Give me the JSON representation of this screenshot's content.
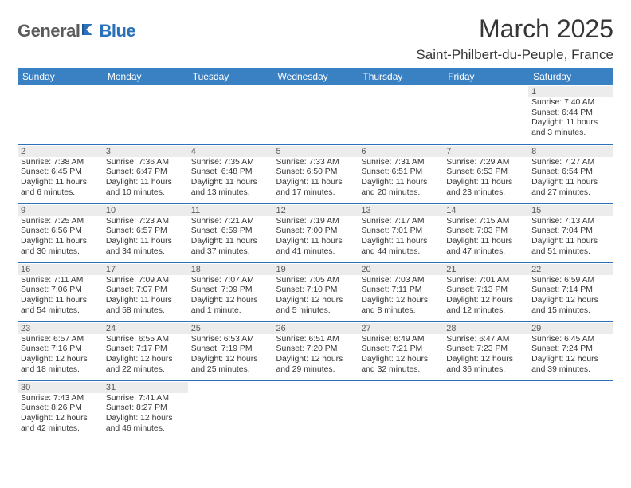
{
  "logo": {
    "part1": "General",
    "part2": "Blue"
  },
  "title": "March 2025",
  "location": "Saint-Philbert-du-Peuple, France",
  "colors": {
    "header_bg": "#3a81c4",
    "border": "#2a71b8",
    "daynum_bg": "#ececec",
    "text": "#363636"
  },
  "weekdays": [
    "Sunday",
    "Monday",
    "Tuesday",
    "Wednesday",
    "Thursday",
    "Friday",
    "Saturday"
  ],
  "weeks": [
    [
      null,
      null,
      null,
      null,
      null,
      null,
      {
        "n": "1",
        "sunrise": "Sunrise: 7:40 AM",
        "sunset": "Sunset: 6:44 PM",
        "d1": "Daylight: 11 hours",
        "d2": "and 3 minutes."
      }
    ],
    [
      {
        "n": "2",
        "sunrise": "Sunrise: 7:38 AM",
        "sunset": "Sunset: 6:45 PM",
        "d1": "Daylight: 11 hours",
        "d2": "and 6 minutes."
      },
      {
        "n": "3",
        "sunrise": "Sunrise: 7:36 AM",
        "sunset": "Sunset: 6:47 PM",
        "d1": "Daylight: 11 hours",
        "d2": "and 10 minutes."
      },
      {
        "n": "4",
        "sunrise": "Sunrise: 7:35 AM",
        "sunset": "Sunset: 6:48 PM",
        "d1": "Daylight: 11 hours",
        "d2": "and 13 minutes."
      },
      {
        "n": "5",
        "sunrise": "Sunrise: 7:33 AM",
        "sunset": "Sunset: 6:50 PM",
        "d1": "Daylight: 11 hours",
        "d2": "and 17 minutes."
      },
      {
        "n": "6",
        "sunrise": "Sunrise: 7:31 AM",
        "sunset": "Sunset: 6:51 PM",
        "d1": "Daylight: 11 hours",
        "d2": "and 20 minutes."
      },
      {
        "n": "7",
        "sunrise": "Sunrise: 7:29 AM",
        "sunset": "Sunset: 6:53 PM",
        "d1": "Daylight: 11 hours",
        "d2": "and 23 minutes."
      },
      {
        "n": "8",
        "sunrise": "Sunrise: 7:27 AM",
        "sunset": "Sunset: 6:54 PM",
        "d1": "Daylight: 11 hours",
        "d2": "and 27 minutes."
      }
    ],
    [
      {
        "n": "9",
        "sunrise": "Sunrise: 7:25 AM",
        "sunset": "Sunset: 6:56 PM",
        "d1": "Daylight: 11 hours",
        "d2": "and 30 minutes."
      },
      {
        "n": "10",
        "sunrise": "Sunrise: 7:23 AM",
        "sunset": "Sunset: 6:57 PM",
        "d1": "Daylight: 11 hours",
        "d2": "and 34 minutes."
      },
      {
        "n": "11",
        "sunrise": "Sunrise: 7:21 AM",
        "sunset": "Sunset: 6:59 PM",
        "d1": "Daylight: 11 hours",
        "d2": "and 37 minutes."
      },
      {
        "n": "12",
        "sunrise": "Sunrise: 7:19 AM",
        "sunset": "Sunset: 7:00 PM",
        "d1": "Daylight: 11 hours",
        "d2": "and 41 minutes."
      },
      {
        "n": "13",
        "sunrise": "Sunrise: 7:17 AM",
        "sunset": "Sunset: 7:01 PM",
        "d1": "Daylight: 11 hours",
        "d2": "and 44 minutes."
      },
      {
        "n": "14",
        "sunrise": "Sunrise: 7:15 AM",
        "sunset": "Sunset: 7:03 PM",
        "d1": "Daylight: 11 hours",
        "d2": "and 47 minutes."
      },
      {
        "n": "15",
        "sunrise": "Sunrise: 7:13 AM",
        "sunset": "Sunset: 7:04 PM",
        "d1": "Daylight: 11 hours",
        "d2": "and 51 minutes."
      }
    ],
    [
      {
        "n": "16",
        "sunrise": "Sunrise: 7:11 AM",
        "sunset": "Sunset: 7:06 PM",
        "d1": "Daylight: 11 hours",
        "d2": "and 54 minutes."
      },
      {
        "n": "17",
        "sunrise": "Sunrise: 7:09 AM",
        "sunset": "Sunset: 7:07 PM",
        "d1": "Daylight: 11 hours",
        "d2": "and 58 minutes."
      },
      {
        "n": "18",
        "sunrise": "Sunrise: 7:07 AM",
        "sunset": "Sunset: 7:09 PM",
        "d1": "Daylight: 12 hours",
        "d2": "and 1 minute."
      },
      {
        "n": "19",
        "sunrise": "Sunrise: 7:05 AM",
        "sunset": "Sunset: 7:10 PM",
        "d1": "Daylight: 12 hours",
        "d2": "and 5 minutes."
      },
      {
        "n": "20",
        "sunrise": "Sunrise: 7:03 AM",
        "sunset": "Sunset: 7:11 PM",
        "d1": "Daylight: 12 hours",
        "d2": "and 8 minutes."
      },
      {
        "n": "21",
        "sunrise": "Sunrise: 7:01 AM",
        "sunset": "Sunset: 7:13 PM",
        "d1": "Daylight: 12 hours",
        "d2": "and 12 minutes."
      },
      {
        "n": "22",
        "sunrise": "Sunrise: 6:59 AM",
        "sunset": "Sunset: 7:14 PM",
        "d1": "Daylight: 12 hours",
        "d2": "and 15 minutes."
      }
    ],
    [
      {
        "n": "23",
        "sunrise": "Sunrise: 6:57 AM",
        "sunset": "Sunset: 7:16 PM",
        "d1": "Daylight: 12 hours",
        "d2": "and 18 minutes."
      },
      {
        "n": "24",
        "sunrise": "Sunrise: 6:55 AM",
        "sunset": "Sunset: 7:17 PM",
        "d1": "Daylight: 12 hours",
        "d2": "and 22 minutes."
      },
      {
        "n": "25",
        "sunrise": "Sunrise: 6:53 AM",
        "sunset": "Sunset: 7:19 PM",
        "d1": "Daylight: 12 hours",
        "d2": "and 25 minutes."
      },
      {
        "n": "26",
        "sunrise": "Sunrise: 6:51 AM",
        "sunset": "Sunset: 7:20 PM",
        "d1": "Daylight: 12 hours",
        "d2": "and 29 minutes."
      },
      {
        "n": "27",
        "sunrise": "Sunrise: 6:49 AM",
        "sunset": "Sunset: 7:21 PM",
        "d1": "Daylight: 12 hours",
        "d2": "and 32 minutes."
      },
      {
        "n": "28",
        "sunrise": "Sunrise: 6:47 AM",
        "sunset": "Sunset: 7:23 PM",
        "d1": "Daylight: 12 hours",
        "d2": "and 36 minutes."
      },
      {
        "n": "29",
        "sunrise": "Sunrise: 6:45 AM",
        "sunset": "Sunset: 7:24 PM",
        "d1": "Daylight: 12 hours",
        "d2": "and 39 minutes."
      }
    ],
    [
      {
        "n": "30",
        "sunrise": "Sunrise: 7:43 AM",
        "sunset": "Sunset: 8:26 PM",
        "d1": "Daylight: 12 hours",
        "d2": "and 42 minutes."
      },
      {
        "n": "31",
        "sunrise": "Sunrise: 7:41 AM",
        "sunset": "Sunset: 8:27 PM",
        "d1": "Daylight: 12 hours",
        "d2": "and 46 minutes."
      },
      null,
      null,
      null,
      null,
      null
    ]
  ]
}
